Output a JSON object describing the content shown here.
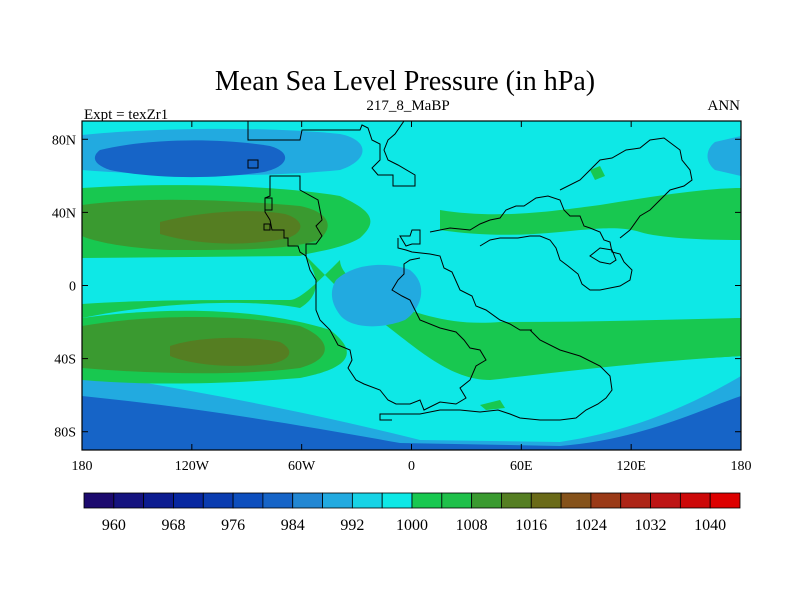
{
  "title": "Mean Sea Level Pressure (in hPa)",
  "left_label": "Expt = texZr1",
  "center_label": "217_8_MaBP",
  "right_label": "ANN",
  "chart_data": {
    "type": "heatmap",
    "variable": "Mean Sea Level Pressure",
    "units": "hPa",
    "x_ticks": [
      "180",
      "120W",
      "60W",
      "0",
      "60E",
      "120E",
      "180"
    ],
    "y_ticks": [
      "80N",
      "40N",
      "0",
      "40S",
      "80S"
    ],
    "xlim": [
      -180,
      180
    ],
    "ylim": [
      -90,
      90
    ],
    "colorbar": {
      "levels": [
        960,
        964,
        968,
        972,
        976,
        980,
        984,
        988,
        992,
        996,
        1000,
        1004,
        1008,
        1012,
        1016,
        1020,
        1024,
        1028,
        1032,
        1036,
        1040
      ],
      "labels": [
        "960",
        "968",
        "976",
        "984",
        "992",
        "1000",
        "1008",
        "1016",
        "1024",
        "1032",
        "1040"
      ],
      "colors": [
        "#1c0a6e",
        "#15137f",
        "#0c1c90",
        "#0727a0",
        "#0a3cb0",
        "#0d4ebd",
        "#1664c7",
        "#2287d3",
        "#22aae0",
        "#17d3e6",
        "#0ee8e6",
        "#18c850",
        "#1fc04a",
        "#3a9a30",
        "#557e22",
        "#6a6a18",
        "#85521a",
        "#9a3a17",
        "#ad2517",
        "#bd1414",
        "#cc0808",
        "#dd0000"
      ]
    }
  },
  "map_colors": {
    "c996": "#17d3e6",
    "c1000": "#0ee8e6",
    "c1004": "#18c850",
    "c1008": "#1fc04a",
    "c1012": "#3a9a30",
    "c1016": "#557e22",
    "c988": "#22aae0",
    "c984": "#1664c7"
  }
}
